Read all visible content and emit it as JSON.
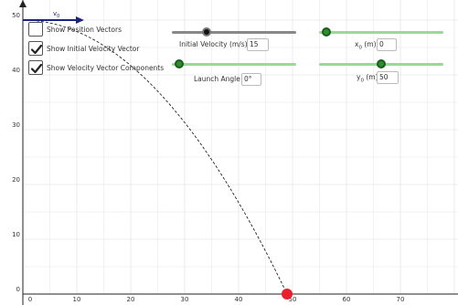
{
  "checkboxes": [
    {
      "label": "Show Position Vectors",
      "checked": false
    },
    {
      "label": "Show Initial Velocity Vector",
      "checked": true
    },
    {
      "label": "Show Velocity Vector Components",
      "checked": true
    }
  ],
  "velocity": {
    "label": "Initial Velocity (m/s)",
    "value": "15",
    "level": 0.25
  },
  "angle": {
    "label": "Launch Angle",
    "value": "0°",
    "level": 0.0
  },
  "x0": {
    "label_main": "x",
    "label_sub": "0",
    "label_unit": " (m)",
    "value": "0",
    "level": 0.0
  },
  "y0": {
    "label_main": "y",
    "label_sub": "0",
    "label_unit": " (m)",
    "value": "50",
    "level": 0.5
  },
  "vector_label": {
    "main": "v",
    "sub": "0"
  },
  "x_ticks": [
    "0",
    "10",
    "20",
    "30",
    "40",
    "50",
    "60",
    "70"
  ],
  "y_ticks": [
    "0",
    "10",
    "20",
    "30",
    "40",
    "50"
  ],
  "colors": {
    "grid": "#e6e6e6",
    "axis": "#222222",
    "vector": "#1a237e",
    "ball": "#e8202e",
    "velocity_track": "#888888",
    "velocity_thumb": "#111111",
    "green_track": "#9bd99b",
    "green_thumb": "#2e8b2e",
    "check": "#222222"
  },
  "icons": {
    "check": "check-icon"
  }
}
